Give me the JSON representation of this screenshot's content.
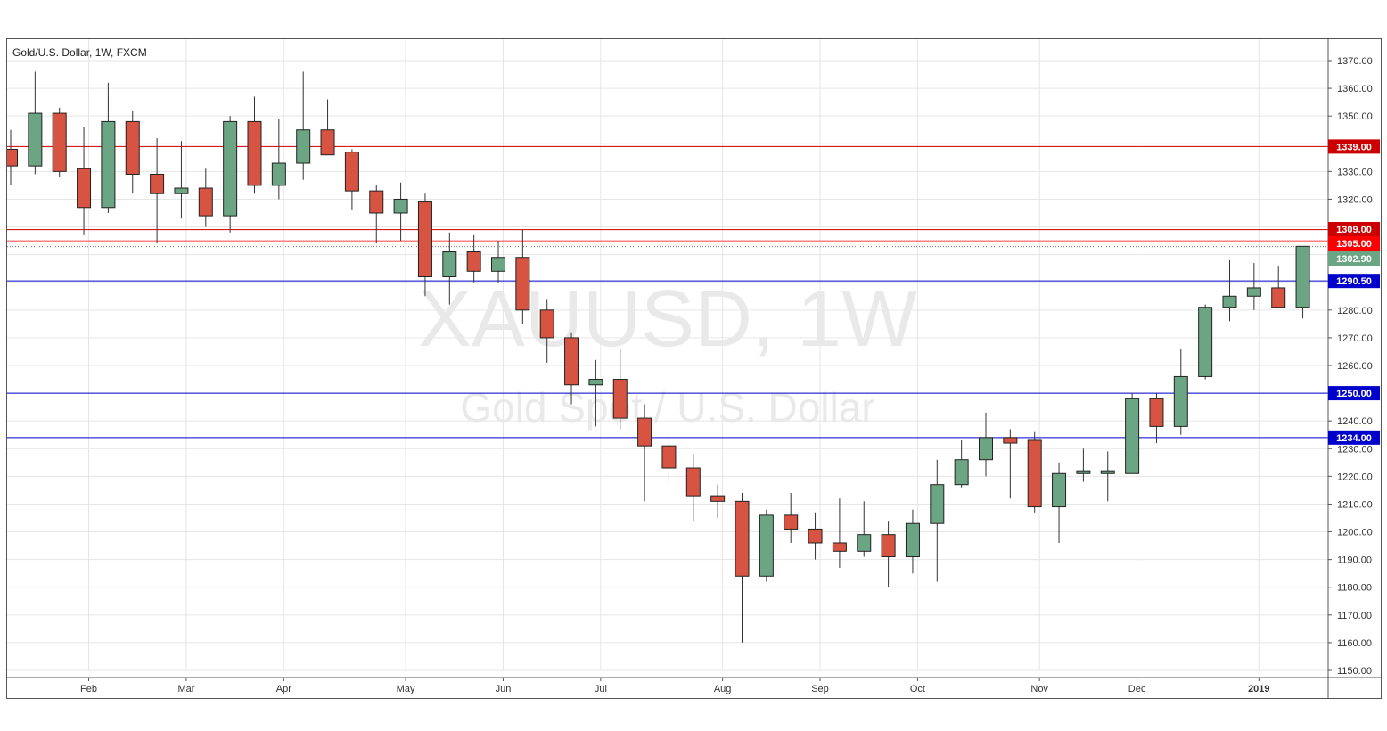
{
  "chart_data": {
    "type": "candlestick",
    "title": "Gold/U.S. Dollar, 1W, FXCM",
    "watermark": {
      "symbol": "XAUUSD, 1W",
      "name": "Gold Spot / U.S. Dollar"
    },
    "ylim": [
      1147,
      1377
    ],
    "y_ticks": [
      1150,
      1160,
      1170,
      1180,
      1190,
      1200,
      1210,
      1220,
      1230,
      1240,
      1250,
      1260,
      1270,
      1280,
      1290,
      1300,
      1310,
      1320,
      1330,
      1340,
      1350,
      1360,
      1370
    ],
    "y_tick_labels": [
      "1150.00",
      "1160.00",
      "1170.00",
      "1180.00",
      "1190.00",
      "1200.00",
      "1210.00",
      "1220.00",
      "1230.00",
      "1240.00",
      "1250.00",
      "1260.00",
      "1270.00",
      "1280.00",
      "1290.00",
      "1300.00",
      "1310.00",
      "1320.00",
      "1330.00",
      "1340.00",
      "1350.00",
      "1360.00",
      "1370.00"
    ],
    "x_labels": [
      {
        "label": "Feb",
        "bar": 3.2
      },
      {
        "label": "Mar",
        "bar": 7.2
      },
      {
        "label": "Apr",
        "bar": 11.2
      },
      {
        "label": "May",
        "bar": 16.2
      },
      {
        "label": "Jun",
        "bar": 20.2
      },
      {
        "label": "Jul",
        "bar": 24.2
      },
      {
        "label": "Aug",
        "bar": 29.2
      },
      {
        "label": "Sep",
        "bar": 33.2
      },
      {
        "label": "Oct",
        "bar": 37.2
      },
      {
        "label": "Nov",
        "bar": 42.2
      },
      {
        "label": "Dec",
        "bar": 46.2
      },
      {
        "label": "2019",
        "bar": 51.2,
        "bold": true
      }
    ],
    "candles": [
      {
        "o": 1338.0,
        "h": 1345.0,
        "l": 1325.0,
        "c": 1332.0
      },
      {
        "o": 1332.0,
        "h": 1366.0,
        "l": 1329.0,
        "c": 1351.0
      },
      {
        "o": 1351.0,
        "h": 1353.0,
        "l": 1328.0,
        "c": 1330.0
      },
      {
        "o": 1331.0,
        "h": 1346.0,
        "l": 1307.0,
        "c": 1317.0
      },
      {
        "o": 1317.0,
        "h": 1362.0,
        "l": 1315.0,
        "c": 1348.0
      },
      {
        "o": 1348.0,
        "h": 1352.0,
        "l": 1322.0,
        "c": 1329.0
      },
      {
        "o": 1329.0,
        "h": 1342.0,
        "l": 1304.0,
        "c": 1322.0
      },
      {
        "o": 1322.0,
        "h": 1341.0,
        "l": 1313.0,
        "c": 1324.0
      },
      {
        "o": 1324.0,
        "h": 1331.0,
        "l": 1310.0,
        "c": 1314.0
      },
      {
        "o": 1314.0,
        "h": 1350.0,
        "l": 1308.0,
        "c": 1348.0
      },
      {
        "o": 1348.0,
        "h": 1357.0,
        "l": 1322.0,
        "c": 1325.0
      },
      {
        "o": 1325.0,
        "h": 1349.0,
        "l": 1320.0,
        "c": 1333.0
      },
      {
        "o": 1333.0,
        "h": 1366.0,
        "l": 1327.0,
        "c": 1345.0
      },
      {
        "o": 1345.0,
        "h": 1356.0,
        "l": 1336.0,
        "c": 1336.0
      },
      {
        "o": 1337.0,
        "h": 1338.0,
        "l": 1316.0,
        "c": 1323.0
      },
      {
        "o": 1323.0,
        "h": 1325.0,
        "l": 1304.0,
        "c": 1315.0
      },
      {
        "o": 1315.0,
        "h": 1326.0,
        "l": 1305.0,
        "c": 1320.0
      },
      {
        "o": 1319.0,
        "h": 1322.0,
        "l": 1285.0,
        "c": 1292.0
      },
      {
        "o": 1292.0,
        "h": 1308.0,
        "l": 1282.0,
        "c": 1301.0
      },
      {
        "o": 1301.0,
        "h": 1307.0,
        "l": 1290.0,
        "c": 1294.0
      },
      {
        "o": 1294.0,
        "h": 1305.0,
        "l": 1290.0,
        "c": 1299.0
      },
      {
        "o": 1299.0,
        "h": 1309.0,
        "l": 1275.0,
        "c": 1280.0
      },
      {
        "o": 1280.0,
        "h": 1284.0,
        "l": 1261.0,
        "c": 1270.0
      },
      {
        "o": 1270.0,
        "h": 1272.0,
        "l": 1246.0,
        "c": 1253.0
      },
      {
        "o": 1253.0,
        "h": 1262.0,
        "l": 1238.0,
        "c": 1255.0
      },
      {
        "o": 1255.0,
        "h": 1266.0,
        "l": 1237.0,
        "c": 1241.0
      },
      {
        "o": 1241.0,
        "h": 1246.0,
        "l": 1211.0,
        "c": 1231.0
      },
      {
        "o": 1231.0,
        "h": 1235.0,
        "l": 1217.0,
        "c": 1223.0
      },
      {
        "o": 1223.0,
        "h": 1228.0,
        "l": 1204.0,
        "c": 1213.0
      },
      {
        "o": 1213.0,
        "h": 1217.0,
        "l": 1205.0,
        "c": 1211.0
      },
      {
        "o": 1211.0,
        "h": 1214.0,
        "l": 1160.0,
        "c": 1184.0
      },
      {
        "o": 1184.0,
        "h": 1208.0,
        "l": 1182.0,
        "c": 1206.0
      },
      {
        "o": 1206.0,
        "h": 1214.0,
        "l": 1196.0,
        "c": 1201.0
      },
      {
        "o": 1201.0,
        "h": 1207.0,
        "l": 1190.0,
        "c": 1196.0
      },
      {
        "o": 1196.0,
        "h": 1212.0,
        "l": 1187.0,
        "c": 1193.0
      },
      {
        "o": 1193.0,
        "h": 1211.0,
        "l": 1191.0,
        "c": 1199.0
      },
      {
        "o": 1199.0,
        "h": 1204.0,
        "l": 1180.0,
        "c": 1191.0
      },
      {
        "o": 1191.0,
        "h": 1208.0,
        "l": 1185.0,
        "c": 1203.0
      },
      {
        "o": 1203.0,
        "h": 1226.0,
        "l": 1182.0,
        "c": 1217.0
      },
      {
        "o": 1217.0,
        "h": 1233.0,
        "l": 1216.0,
        "c": 1226.0
      },
      {
        "o": 1226.0,
        "h": 1243.0,
        "l": 1220.0,
        "c": 1234.0
      },
      {
        "o": 1234.0,
        "h": 1237.0,
        "l": 1212.0,
        "c": 1232.0
      },
      {
        "o": 1233.0,
        "h": 1236.0,
        "l": 1207.0,
        "c": 1209.0
      },
      {
        "o": 1209.0,
        "h": 1225.0,
        "l": 1196.0,
        "c": 1221.0
      },
      {
        "o": 1221.0,
        "h": 1230.0,
        "l": 1218.0,
        "c": 1222.0
      },
      {
        "o": 1221.0,
        "h": 1229.0,
        "l": 1211.0,
        "c": 1222.0
      },
      {
        "o": 1221.0,
        "h": 1250.0,
        "l": 1221.0,
        "c": 1248.0
      },
      {
        "o": 1248.0,
        "h": 1250.0,
        "l": 1232.0,
        "c": 1238.0
      },
      {
        "o": 1238.0,
        "h": 1266.0,
        "l": 1235.0,
        "c": 1256.0
      },
      {
        "o": 1256.0,
        "h": 1282.0,
        "l": 1255.0,
        "c": 1281.0
      },
      {
        "o": 1281.0,
        "h": 1298.0,
        "l": 1276.0,
        "c": 1285.0
      },
      {
        "o": 1285.0,
        "h": 1297.0,
        "l": 1280.0,
        "c": 1288.0
      },
      {
        "o": 1288.0,
        "h": 1296.0,
        "l": 1281.0,
        "c": 1281.0
      },
      {
        "o": 1281.0,
        "h": 1303.0,
        "l": 1277.0,
        "c": 1303.0
      }
    ],
    "horizontal_lines": [
      {
        "value": 1339.0,
        "label": "1339.00",
        "color": "#cc0000",
        "style": "solid"
      },
      {
        "value": 1309.0,
        "label": "1309.00",
        "color": "#cc0000",
        "style": "solid"
      },
      {
        "value": 1305.0,
        "label": "1305.00",
        "color": "#ff0000",
        "style": "solid-thin"
      },
      {
        "value": 1302.9,
        "label": "1302.90",
        "color": "#5f9e7c",
        "style": "dotted"
      },
      {
        "value": 1290.5,
        "label": "1290.50",
        "color": "#0000cc",
        "style": "solid"
      },
      {
        "value": 1250.0,
        "label": "1250.00",
        "color": "#0000cc",
        "style": "solid"
      },
      {
        "value": 1234.0,
        "label": "1234.00",
        "color": "#0000cc",
        "style": "solid"
      }
    ],
    "colors": {
      "up_fill": "#6ba583",
      "down_fill": "#d75442",
      "wick": "#333333",
      "grid": "#e6e6e6",
      "axis_text": "#333333",
      "watermark": "#e9e9e9"
    },
    "grid": true
  }
}
